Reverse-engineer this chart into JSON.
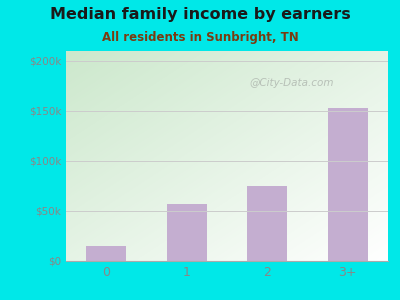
{
  "title": "Median family income by earners",
  "subtitle": "All residents in Sunbright, TN",
  "categories": [
    "0",
    "1",
    "2",
    "3+"
  ],
  "values": [
    15000,
    57000,
    75000,
    153000
  ],
  "bar_color": "#c4aed0",
  "ylim": [
    0,
    210000
  ],
  "yticks": [
    0,
    50000,
    100000,
    150000,
    200000
  ],
  "ytick_labels": [
    "$0",
    "$50k",
    "$100k",
    "$150k",
    "$200k"
  ],
  "outer_bg": "#00e8e8",
  "title_color": "#1a1a1a",
  "subtitle_color": "#7a3b10",
  "tick_color": "#888888",
  "grid_color": "#cccccc",
  "watermark": "@City-Data.com",
  "watermark_color": "#b0b8b0"
}
